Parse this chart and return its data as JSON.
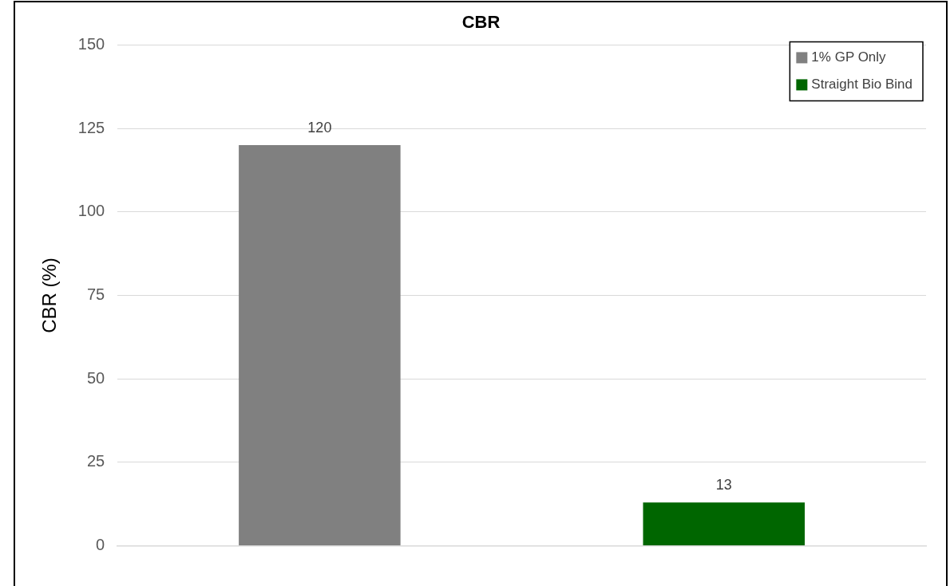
{
  "chart_data": {
    "type": "bar",
    "title": "CBR",
    "ylabel": "CBR (%)",
    "categories": [
      null,
      null
    ],
    "series": [
      {
        "name": "1% GP Only",
        "color": "#808080",
        "values": [
          120,
          null
        ]
      },
      {
        "name": "Straight Bio Bind",
        "color": "#006600",
        "values": [
          null,
          13
        ]
      }
    ],
    "ylim": [
      0,
      150
    ],
    "yticks": [
      0,
      25,
      50,
      75,
      100,
      125,
      150
    ],
    "grid": "y",
    "legend": "top right",
    "data_labels": true
  }
}
